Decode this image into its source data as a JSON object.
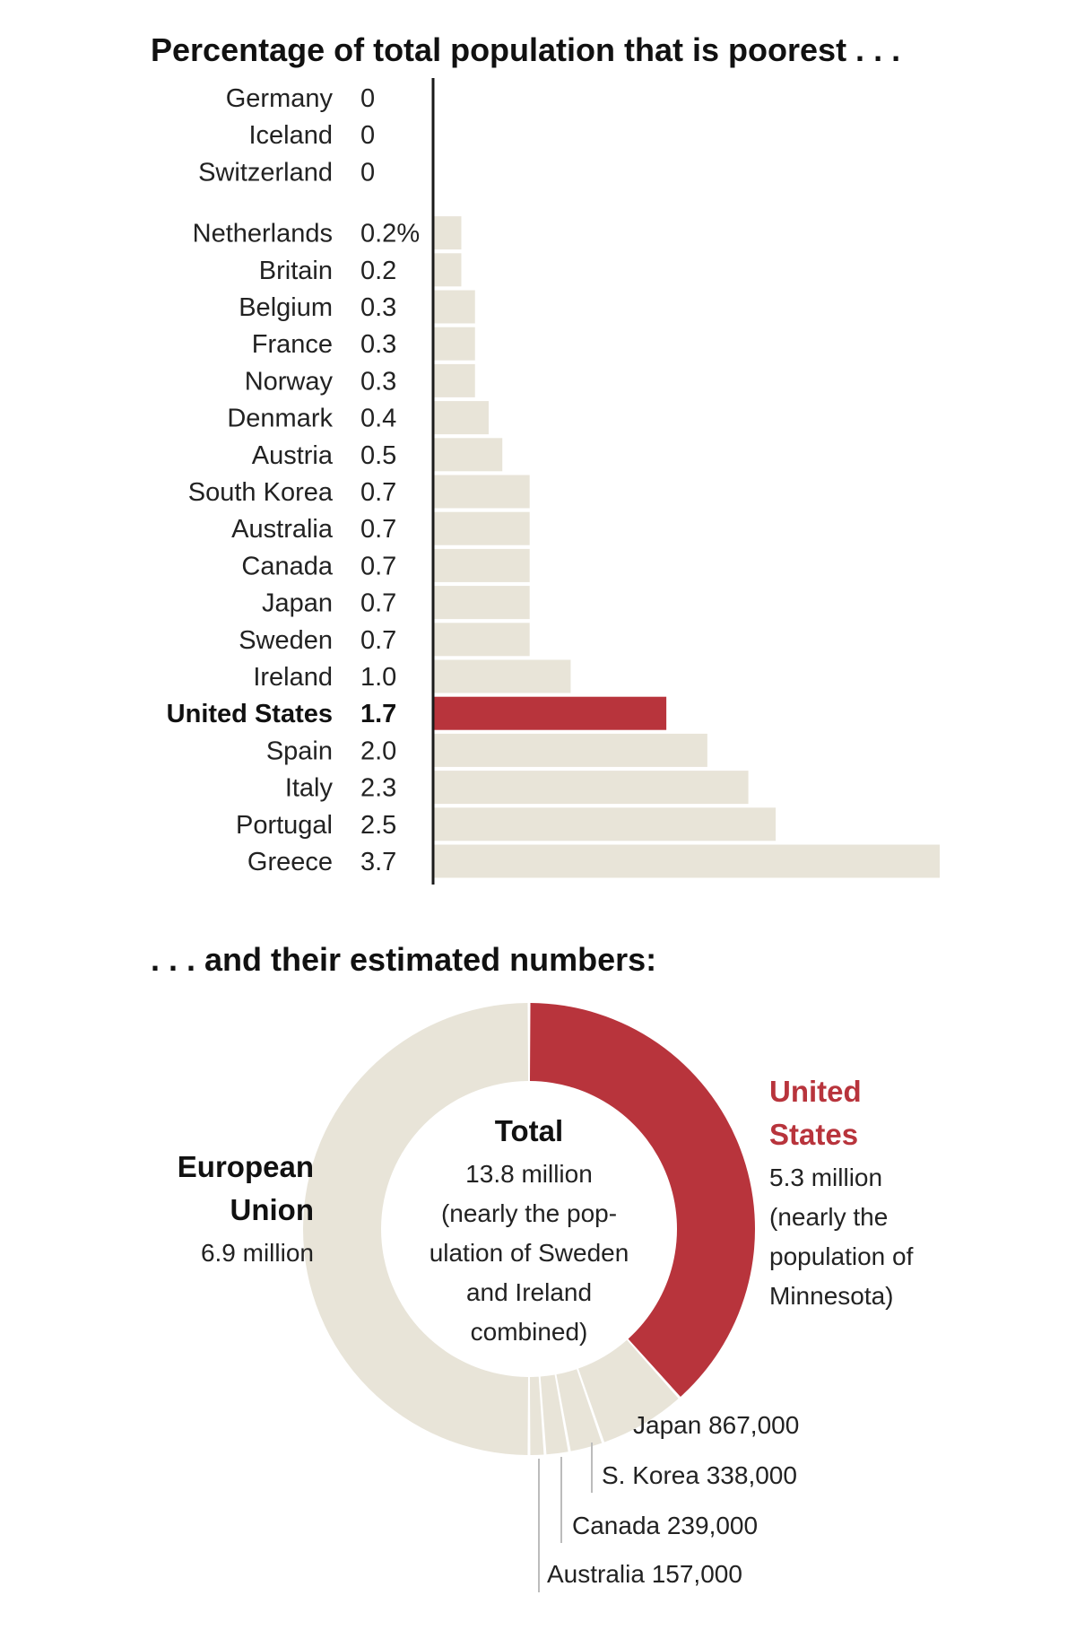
{
  "chart_data": [
    {
      "type": "bar",
      "orientation": "horizontal",
      "title": "Percentage of total population that is poorest . . .",
      "unit_note": "%",
      "colors": {
        "bar": "#e8e4d8",
        "highlight": "#b8343c",
        "axis": "#1a1a1a"
      },
      "highlight": "United States",
      "xlim": [
        0,
        3.7
      ],
      "groups": [
        {
          "rows": [
            {
              "category": "Germany",
              "value": 0,
              "label": "0"
            },
            {
              "category": "Iceland",
              "value": 0,
              "label": "0"
            },
            {
              "category": "Switzerland",
              "value": 0,
              "label": "0"
            }
          ]
        },
        {
          "rows": [
            {
              "category": "Netherlands",
              "value": 0.2,
              "label": "0.2%"
            },
            {
              "category": "Britain",
              "value": 0.2,
              "label": "0.2"
            },
            {
              "category": "Belgium",
              "value": 0.3,
              "label": "0.3"
            },
            {
              "category": "France",
              "value": 0.3,
              "label": "0.3"
            },
            {
              "category": "Norway",
              "value": 0.3,
              "label": "0.3"
            },
            {
              "category": "Denmark",
              "value": 0.4,
              "label": "0.4"
            },
            {
              "category": "Austria",
              "value": 0.5,
              "label": "0.5"
            },
            {
              "category": "South Korea",
              "value": 0.7,
              "label": "0.7"
            },
            {
              "category": "Australia",
              "value": 0.7,
              "label": "0.7"
            },
            {
              "category": "Canada",
              "value": 0.7,
              "label": "0.7"
            },
            {
              "category": "Japan",
              "value": 0.7,
              "label": "0.7"
            },
            {
              "category": "Sweden",
              "value": 0.7,
              "label": "0.7"
            },
            {
              "category": "Ireland",
              "value": 1.0,
              "label": "1.0"
            },
            {
              "category": "United States",
              "value": 1.7,
              "label": "1.7"
            },
            {
              "category": "Spain",
              "value": 2.0,
              "label": "2.0"
            },
            {
              "category": "Italy",
              "value": 2.3,
              "label": "2.3"
            },
            {
              "category": "Portugal",
              "value": 2.5,
              "label": "2.5"
            },
            {
              "category": "Greece",
              "value": 3.7,
              "label": "3.7"
            }
          ]
        }
      ]
    },
    {
      "type": "pie",
      "style": "donut",
      "title": ". . . and their estimated numbers:",
      "center": {
        "heading": "Total",
        "lines": [
          "13.8 million",
          "(nearly the pop-",
          "ulation of Sweden",
          "and Ireland",
          "combined)"
        ]
      },
      "slices": [
        {
          "name": "United States",
          "value": 5300000,
          "color": "#b8343c",
          "heading": [
            "United",
            "States"
          ],
          "lines": [
            "5.3 million",
            "(nearly the",
            "population of",
            "Minnesota)"
          ]
        },
        {
          "name": "Japan",
          "value": 867000,
          "color": "#e8e4d8",
          "callout": "Japan 867,000"
        },
        {
          "name": "S. Korea",
          "value": 338000,
          "color": "#e8e4d8",
          "callout": "S. Korea 338,000"
        },
        {
          "name": "Canada",
          "value": 239000,
          "color": "#e8e4d8",
          "callout": "Canada 239,000"
        },
        {
          "name": "Australia",
          "value": 157000,
          "color": "#e8e4d8",
          "callout": "Australia 157,000"
        },
        {
          "name": "European Union",
          "value": 6900000,
          "color": "#e8e4d8",
          "heading": [
            "European",
            "Union"
          ],
          "lines": [
            "6.9 million"
          ]
        }
      ]
    }
  ]
}
